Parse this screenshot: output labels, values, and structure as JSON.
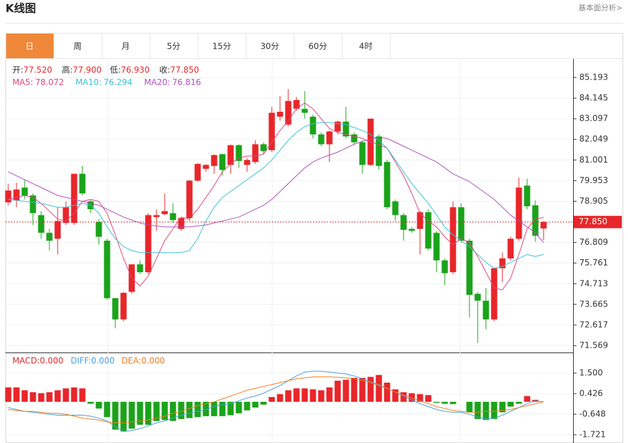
{
  "header": {
    "title": "K线图",
    "link": "基本面分析>"
  },
  "tabs": [
    "日",
    "周",
    "月",
    "5分",
    "15分",
    "30分",
    "60分",
    "4时"
  ],
  "active_tab": 0,
  "chart_data": [
    {
      "type": "candlestick",
      "up_color": "#e8262a",
      "down_color": "#1aa31a",
      "legend": [
        {
          "label": "开:",
          "value": 77.52,
          "value_label": "77.520"
        },
        {
          "label": "高:",
          "value": 77.9,
          "value_label": "77.900"
        },
        {
          "label": "低:",
          "value": 76.93,
          "value_label": "76.930"
        },
        {
          "label": "收:",
          "value": 77.85,
          "value_label": "77.850"
        }
      ],
      "open": [
        78.85,
        78.95,
        79.6,
        79.2,
        78.2,
        77.3,
        77.0,
        77.8,
        77.8,
        80.3,
        78.9,
        77.85,
        76.9,
        73.98,
        72.9,
        74.3,
        75.7,
        75.3,
        78.1,
        78.25,
        78.3,
        77.5,
        78.05,
        79.95,
        80.55,
        80.7,
        81.3,
        80.75,
        81.75,
        80.75,
        80.9,
        81.8,
        81.5,
        83.2,
        82.8,
        83.6,
        83.6,
        83.2,
        82.3,
        81.8,
        82.45,
        82.95,
        82.3,
        81.9,
        80.75,
        82.2,
        80.9,
        78.9,
        78.2,
        77.5,
        77.5,
        78.35,
        77.3,
        75.9,
        75.3,
        78.6,
        76.9,
        74.2,
        73.85,
        72.9,
        75.5,
        76.0,
        77.0,
        79.7,
        78.7,
        77.52
      ],
      "high": [
        79.8,
        79.85,
        80.0,
        79.3,
        78.4,
        77.5,
        78.6,
        78.9,
        80.3,
        80.7,
        79.0,
        78.0,
        77.0,
        74.0,
        74.3,
        75.7,
        75.9,
        78.3,
        78.5,
        79.3,
        78.8,
        78.1,
        80.0,
        80.85,
        80.8,
        81.3,
        81.3,
        81.8,
        81.8,
        81.1,
        82.0,
        81.9,
        83.7,
        84.25,
        84.6,
        84.2,
        84.5,
        83.3,
        82.4,
        82.5,
        83.0,
        83.7,
        82.4,
        82.0,
        83.1,
        82.3,
        81.0,
        79.0,
        78.3,
        77.6,
        78.4,
        78.5,
        77.4,
        76.0,
        78.9,
        78.8,
        77.0,
        74.3,
        74.5,
        75.5,
        76.3,
        77.1,
        80.1,
        80.05,
        78.95,
        77.9
      ],
      "low": [
        78.7,
        78.6,
        79.0,
        77.7,
        77.0,
        76.4,
        76.2,
        77.7,
        77.7,
        79.2,
        78.3,
        76.7,
        73.9,
        72.45,
        72.8,
        74.2,
        75.2,
        75.2,
        77.4,
        78.2,
        77.8,
        77.4,
        77.9,
        79.9,
        80.4,
        80.3,
        80.2,
        80.3,
        80.6,
        80.4,
        80.8,
        81.3,
        81.4,
        83.0,
        82.7,
        83.5,
        83.1,
        82.1,
        81.7,
        80.9,
        82.3,
        82.1,
        81.8,
        80.3,
        80.7,
        80.5,
        78.5,
        77.9,
        76.9,
        77.3,
        76.2,
        76.4,
        75.3,
        74.65,
        75.2,
        76.8,
        73.0,
        71.7,
        72.4,
        72.8,
        74.8,
        75.9,
        76.9,
        78.5,
        76.85,
        76.93
      ],
      "close": [
        79.45,
        79.5,
        79.2,
        78.3,
        77.3,
        76.9,
        77.9,
        78.6,
        80.3,
        79.3,
        78.5,
        77.1,
        73.98,
        72.9,
        74.25,
        75.7,
        75.3,
        78.2,
        78.2,
        78.4,
        77.95,
        78.05,
        79.95,
        80.8,
        80.75,
        81.25,
        80.5,
        81.75,
        80.95,
        81.0,
        81.8,
        81.45,
        83.4,
        83.45,
        84.0,
        84.05,
        83.4,
        82.3,
        81.8,
        82.45,
        82.95,
        82.2,
        81.9,
        80.75,
        83.1,
        80.7,
        78.6,
        78.2,
        77.45,
        77.4,
        78.35,
        76.5,
        75.9,
        75.25,
        78.6,
        76.9,
        74.15,
        73.85,
        72.9,
        75.5,
        76.0,
        77.0,
        79.6,
        78.65,
        77.15,
        77.85
      ],
      "series": [
        {
          "name": "MA5:",
          "value": 78.072,
          "color": "#e0457b",
          "values": [
            79.0,
            79.1,
            79.2,
            79.1,
            78.8,
            78.4,
            78.0,
            77.9,
            78.3,
            78.9,
            79.0,
            78.9,
            78.3,
            77.2,
            76.0,
            75.0,
            74.6,
            75.1,
            76.0,
            76.9,
            77.5,
            78.1,
            78.0,
            78.5,
            79.1,
            79.7,
            80.4,
            80.8,
            81.1,
            81.2,
            81.2,
            81.3,
            81.9,
            82.5,
            83.0,
            83.6,
            83.9,
            83.6,
            83.1,
            82.6,
            82.4,
            82.3,
            82.2,
            82.1,
            81.9,
            81.8,
            81.6,
            80.9,
            80.2,
            79.3,
            78.3,
            77.9,
            77.6,
            77.1,
            76.7,
            77.0,
            76.8,
            76.1,
            75.3,
            74.5,
            74.4,
            75.0,
            76.2,
            77.5,
            78.0,
            78.07
          ]
        },
        {
          "name": "MA10:",
          "value": 76.294,
          "color": "#39c2d7",
          "values": [
            79.0,
            78.95,
            78.9,
            78.85,
            78.8,
            78.7,
            78.6,
            78.6,
            78.7,
            78.8,
            78.7,
            78.3,
            77.6,
            77.0,
            76.6,
            76.4,
            76.3,
            76.3,
            76.3,
            76.3,
            76.3,
            76.3,
            76.4,
            77.0,
            77.9,
            78.6,
            79.1,
            79.4,
            79.7,
            80.0,
            80.3,
            80.6,
            81.0,
            81.5,
            82.0,
            82.4,
            82.7,
            82.85,
            82.9,
            82.9,
            82.85,
            82.8,
            82.65,
            82.5,
            82.3,
            82.0,
            81.6,
            81.0,
            80.4,
            79.8,
            79.3,
            78.8,
            78.2,
            77.6,
            77.2,
            76.9,
            76.6,
            76.2,
            75.8,
            75.5,
            75.6,
            75.8,
            76.0,
            76.2,
            76.1,
            76.2
          ]
        },
        {
          "name": "MA20:",
          "value": 76.816,
          "color": "#b04fbf",
          "values": [
            80.4,
            80.2,
            80.0,
            79.8,
            79.6,
            79.4,
            79.2,
            79.1,
            79.0,
            78.9,
            78.8,
            78.7,
            78.5,
            78.3,
            78.1,
            77.95,
            77.8,
            77.7,
            77.65,
            77.6,
            77.6,
            77.6,
            77.6,
            77.65,
            77.7,
            77.8,
            77.9,
            78.0,
            78.1,
            78.3,
            78.5,
            78.7,
            79.0,
            79.4,
            79.8,
            80.2,
            80.6,
            80.9,
            81.1,
            81.25,
            81.4,
            81.6,
            81.8,
            81.95,
            82.05,
            82.15,
            82.1,
            81.9,
            81.7,
            81.5,
            81.3,
            81.1,
            80.9,
            80.6,
            80.3,
            80.1,
            79.9,
            79.6,
            79.3,
            79.0,
            78.6,
            78.2,
            77.9,
            77.6,
            77.3,
            76.8
          ]
        }
      ],
      "last_price": {
        "value": 77.85,
        "label": "77.850",
        "color": "#e8262a"
      },
      "ylim": [
        71.255,
        86.064
      ],
      "yticks": [
        85.193,
        84.145,
        83.097,
        82.049,
        81.001,
        79.953,
        78.905,
        76.809,
        75.761,
        74.713,
        73.665,
        72.617,
        71.569
      ]
    },
    {
      "type": "macd",
      "series": [
        {
          "name": "MACD:",
          "value": 0,
          "value_label": "0.000",
          "color": "#e8262a",
          "down_color": "#1aa31a",
          "values": [
            0.75,
            0.75,
            0.6,
            0.5,
            0.45,
            0.5,
            0.6,
            0.7,
            0.75,
            0.7,
            -0.1,
            -0.35,
            -0.8,
            -1.45,
            -1.55,
            -1.4,
            -1.2,
            -1.2,
            -1.0,
            -0.95,
            -1.0,
            -0.9,
            -0.85,
            -0.8,
            -0.75,
            -0.75,
            -0.75,
            -0.7,
            -0.6,
            -0.45,
            -0.3,
            -0.15,
            0.25,
            0.4,
            0.6,
            0.7,
            0.7,
            0.65,
            0.6,
            0.75,
            1.1,
            1.15,
            1.25,
            1.25,
            1.3,
            1.4,
            1.0,
            0.65,
            0.5,
            0.45,
            0.4,
            0.35,
            -0.05,
            -0.1,
            -0.12,
            0.0,
            -0.55,
            -0.9,
            -0.95,
            -0.9,
            -0.55,
            -0.25,
            -0.1,
            0.3,
            0.1,
            0.0
          ]
        },
        {
          "name": "DIFF:",
          "value": 0,
          "value_label": "0.000",
          "color": "#4a9fe0",
          "values": [
            -0.3,
            -0.4,
            -0.5,
            -0.55,
            -0.6,
            -0.65,
            -0.7,
            -0.7,
            -0.7,
            -0.7,
            -0.75,
            -0.85,
            -1.0,
            -1.3,
            -1.55,
            -1.5,
            -1.4,
            -1.25,
            -1.1,
            -1.0,
            -0.85,
            -0.7,
            -0.6,
            -0.5,
            -0.4,
            -0.25,
            -0.15,
            -0.1,
            0.05,
            0.2,
            0.3,
            0.45,
            0.65,
            0.85,
            1.1,
            1.35,
            1.55,
            1.6,
            1.6,
            1.55,
            1.5,
            1.45,
            1.35,
            1.2,
            1.05,
            0.9,
            0.7,
            0.5,
            0.3,
            0.1,
            -0.1,
            -0.25,
            -0.4,
            -0.5,
            -0.55,
            -0.55,
            -0.65,
            -0.8,
            -0.9,
            -0.85,
            -0.7,
            -0.5,
            -0.3,
            -0.1,
            0.05,
            0.0
          ]
        },
        {
          "name": "DEA:",
          "value": 0,
          "value_label": "0.000",
          "color": "#f07b1f",
          "values": [
            -0.4,
            -0.45,
            -0.5,
            -0.5,
            -0.55,
            -0.6,
            -0.6,
            -0.65,
            -0.75,
            -0.85,
            -0.9,
            -0.95,
            -1.05,
            -1.1,
            -1.1,
            -1.05,
            -1.0,
            -0.95,
            -0.85,
            -0.75,
            -0.6,
            -0.5,
            -0.35,
            -0.2,
            -0.1,
            0.0,
            0.15,
            0.3,
            0.45,
            0.6,
            0.7,
            0.8,
            0.9,
            1.0,
            1.1,
            1.2,
            1.25,
            1.3,
            1.3,
            1.3,
            1.28,
            1.25,
            1.2,
            1.1,
            1.0,
            0.85,
            0.7,
            0.5,
            0.35,
            0.2,
            0.05,
            -0.1,
            -0.25,
            -0.35,
            -0.45,
            -0.5,
            -0.55,
            -0.55,
            -0.5,
            -0.5,
            -0.45,
            -0.4,
            -0.3,
            -0.2,
            -0.1,
            0.0
          ]
        }
      ],
      "ylim": [
        -2.114,
        2.43
      ],
      "yticks": [
        {
          "value": 1.5,
          "label": "1.500"
        },
        0.426,
        -0.648,
        -1.721
      ]
    }
  ]
}
